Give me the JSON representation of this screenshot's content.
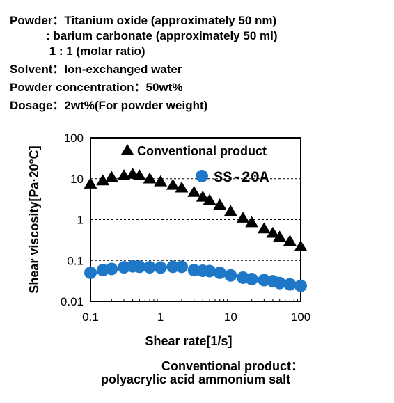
{
  "header": {
    "line1": "Powder：Titanium oxide (approximately 50 nm)",
    "line2": "           : barium carbonate (approximately 50 ml)",
    "line3": "            1 : 1 (molar ratio)",
    "line4": "Solvent：Ion-exchanged water",
    "line5": "Powder concentration：50wt%",
    "line6": "Dosage：2wt%(For powder weight)"
  },
  "footer": {
    "line1": "Conventional product：",
    "line2": "polyacrylic acid ammonium salt"
  },
  "colors": {
    "conventional": "#000000",
    "ss20a": "#1f77c8"
  },
  "chart_data": {
    "type": "scatter",
    "xlabel": "Shear rate[1/s]",
    "ylabel": "Shear viscosity[Pa·20°C]",
    "x_scale": "log",
    "y_scale": "log",
    "xlim": [
      0.1,
      100
    ],
    "ylim": [
      0.01,
      100
    ],
    "x_ticks": [
      "0.1",
      "1",
      "10",
      "100"
    ],
    "y_ticks": [
      "100",
      "10",
      "1",
      "0.1",
      "0.01"
    ],
    "grid": "horizontal dashed",
    "legend_position": "top-right",
    "series": [
      {
        "name": "Conventional product",
        "marker": "triangle",
        "x": [
          0.1,
          0.15,
          0.2,
          0.3,
          0.4,
          0.5,
          0.7,
          1,
          1.5,
          2,
          3,
          4,
          5,
          7,
          10,
          15,
          20,
          30,
          40,
          50,
          70,
          100
        ],
        "y": [
          7.5,
          9,
          11,
          12,
          13,
          12,
          10,
          8.5,
          7,
          6,
          4.7,
          3.6,
          3,
          2.3,
          1.6,
          1.1,
          0.85,
          0.6,
          0.47,
          0.38,
          0.3,
          0.22
        ]
      },
      {
        "name": "SS-20A",
        "marker": "circle",
        "x": [
          0.1,
          0.15,
          0.2,
          0.3,
          0.4,
          0.5,
          0.7,
          1,
          1.5,
          2,
          3,
          4,
          5,
          7,
          10,
          15,
          20,
          30,
          40,
          50,
          70,
          100
        ],
        "y": [
          0.05,
          0.058,
          0.062,
          0.068,
          0.072,
          0.07,
          0.068,
          0.067,
          0.07,
          0.07,
          0.058,
          0.056,
          0.055,
          0.05,
          0.043,
          0.038,
          0.035,
          0.033,
          0.031,
          0.028,
          0.026,
          0.024
        ]
      }
    ]
  }
}
